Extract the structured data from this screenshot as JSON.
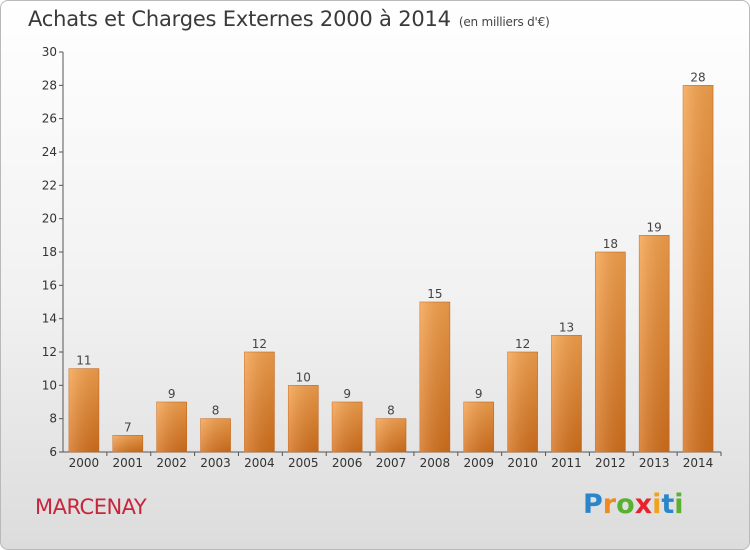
{
  "title": "Achats et Charges Externes 2000 à 2014",
  "subtitle": "(en milliers d'€)",
  "town": "MARCENAY",
  "logo": {
    "letters": [
      "P",
      "r",
      "o",
      "x",
      "i",
      "t",
      "i"
    ],
    "colors": [
      "#2a86c8",
      "#f08a1c",
      "#59b031",
      "#e8232e",
      "#f0a21c",
      "#2a86c8",
      "#59b031"
    ]
  },
  "chart_data": {
    "type": "bar",
    "title": "Achats et Charges Externes 2000 à 2014",
    "categories": [
      "2000",
      "2001",
      "2002",
      "2003",
      "2004",
      "2005",
      "2006",
      "2007",
      "2008",
      "2009",
      "2010",
      "2011",
      "2012",
      "2013",
      "2014"
    ],
    "values": [
      11,
      7,
      9,
      8,
      12,
      10,
      9,
      8,
      15,
      9,
      12,
      13,
      18,
      19,
      28
    ],
    "ylim": [
      6,
      30
    ],
    "yticks": [
      6,
      8,
      10,
      12,
      14,
      16,
      18,
      20,
      22,
      24,
      26,
      28,
      30
    ],
    "xlabel": "",
    "ylabel": "",
    "grid": false,
    "bar_color": "#f0963a"
  }
}
